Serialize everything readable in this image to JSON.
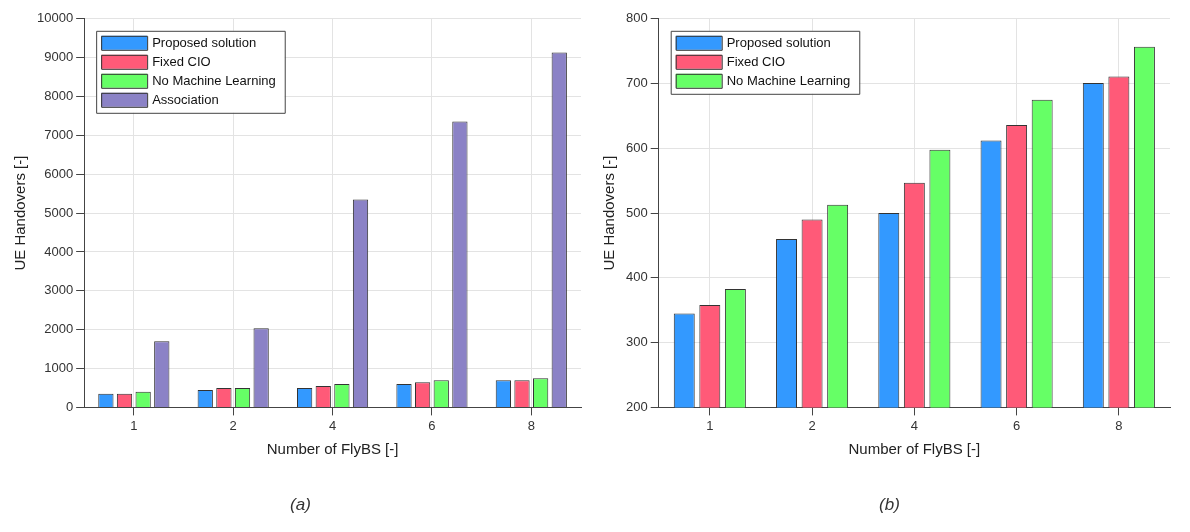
{
  "chart_data": [
    {
      "type": "bar",
      "xlabel": "Number of FlyBS [-]",
      "ylabel": "UE Handovers [-]",
      "categories": [
        "1",
        "2",
        "4",
        "6",
        "8"
      ],
      "series": [
        {
          "name": "Proposed solution",
          "color": "#3399ff",
          "values": [
            350,
            450,
            500,
            600,
            700
          ]
        },
        {
          "name": "Fixed CIO",
          "color": "#ff5a78",
          "values": [
            350,
            500,
            550,
            650,
            700
          ]
        },
        {
          "name": "No Machine Learning",
          "color": "#66ff66",
          "values": [
            400,
            500,
            600,
            700,
            750
          ]
        },
        {
          "name": "Association",
          "color": "#8b82c6",
          "values": [
            1700,
            2040,
            5350,
            7360,
            9130
          ]
        }
      ],
      "ylim": [
        0,
        10000
      ],
      "yticks": [
        0,
        1000,
        2000,
        3000,
        4000,
        5000,
        6000,
        7000,
        8000,
        9000,
        10000
      ],
      "grid": true,
      "legend": "top left",
      "annotations": [
        "(a)"
      ]
    },
    {
      "type": "bar",
      "xlabel": "Number of FlyBS [-]",
      "ylabel": "UE Handovers [-]",
      "categories": [
        "1",
        "2",
        "4",
        "6",
        "8"
      ],
      "series": [
        {
          "name": "Proposed solution",
          "color": "#3399ff",
          "values": [
            345,
            460,
            500,
            612,
            701
          ]
        },
        {
          "name": "Fixed CIO",
          "color": "#ff5a78",
          "values": [
            358,
            490,
            547,
            636,
            711
          ]
        },
        {
          "name": "No Machine Learning",
          "color": "#66ff66",
          "values": [
            383,
            513,
            598,
            675,
            757
          ]
        }
      ],
      "ylim": [
        200,
        800
      ],
      "yticks": [
        200,
        300,
        400,
        500,
        600,
        700,
        800
      ],
      "grid": true,
      "legend": "top left",
      "annotations": [
        "(b)"
      ]
    }
  ]
}
